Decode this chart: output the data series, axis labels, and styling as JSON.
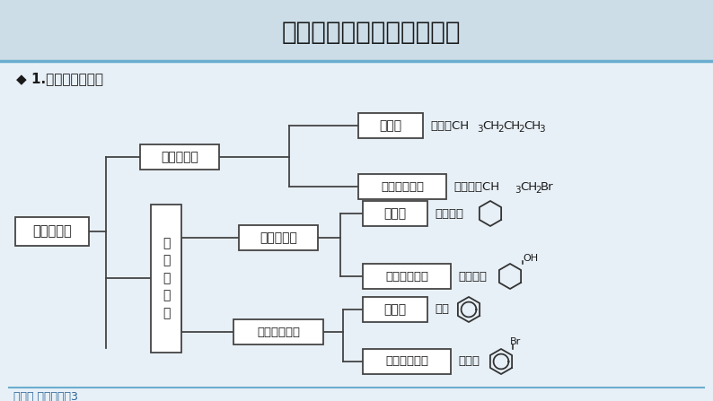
{
  "title": "一、有机化合物的分类方法",
  "subtitle": "◆ 1.依据碳骨架分类",
  "bg_color": "#e8f0f7",
  "header_bg": "#d0dff0",
  "line_color": "#6aadce",
  "box_border": "#444444",
  "title_color": "#1a1a1a",
  "footer_text": "人教版 选择性必修3",
  "footer_color": "#2a6496",
  "root_label": "有机化合物",
  "chain_label": "链状化合物",
  "ring_label": "环\n状\n化\n合\n物",
  "alip_label": "脂环化合物",
  "arom_comp_label": "芳香烃化合物",
  "fat_alk_label": "脂肪烃",
  "fat_deriv_label": "脂肪烃衍生物",
  "ali_alk_label": "脂环烃",
  "ali_deriv_label": "脂环烃衍生物",
  "arom_label": "芳香烃",
  "arom_deriv_label": "芳香族衍生物",
  "ex_fat_alk": "如丁烷CH",
  "ex_fat_alk_sub": "3",
  "ex_fat_deriv": "如溴乙烷CH",
  "ex_fat_deriv_sub": "3",
  "ex_ali_alk": "如环己烷",
  "ex_ali_deriv": "如环己醇",
  "ex_arom": "如苯",
  "ex_arom_deriv": "如溴苯"
}
